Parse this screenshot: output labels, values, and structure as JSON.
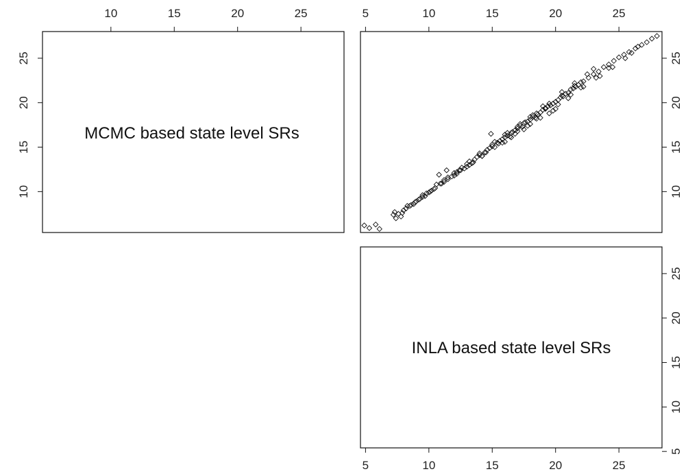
{
  "chart_data": {
    "type": "scatter",
    "variables": [
      "MCMC based state level SRs",
      "INLA based state level SRs"
    ],
    "tick_labels": {
      "top_left_panel": [
        "10",
        "15",
        "20",
        "25"
      ],
      "top_right_panel": [
        "5",
        "10",
        "15",
        "20",
        "25"
      ],
      "right_upper_panel": [
        "10",
        "15",
        "20",
        "25"
      ],
      "left_upper_panel": [
        "10",
        "15",
        "20",
        "25"
      ],
      "right_lower_panel": [
        "5",
        "10",
        "15",
        "20",
        "25"
      ],
      "bottom_right_panel": [
        "5",
        "10",
        "15",
        "20",
        "25"
      ]
    },
    "xlim": [
      4.6,
      28.4
    ],
    "ylim": [
      5.4,
      28.0
    ],
    "colors": {
      "points": "#111111",
      "axes": "#111111",
      "background": "#ffffff"
    },
    "points": [
      [
        4.9,
        6.2
      ],
      [
        5.3,
        5.9
      ],
      [
        5.8,
        6.3
      ],
      [
        6.1,
        5.8
      ],
      [
        7.2,
        7.4
      ],
      [
        7.4,
        7.0
      ],
      [
        7.6,
        7.5
      ],
      [
        7.8,
        7.2
      ],
      [
        7.3,
        7.7
      ],
      [
        8.0,
        7.9
      ],
      [
        8.3,
        8.4
      ],
      [
        8.6,
        8.5
      ],
      [
        8.9,
        8.8
      ],
      [
        9.2,
        9.1
      ],
      [
        9.5,
        9.4
      ],
      [
        9.8,
        9.8
      ],
      [
        10.1,
        10.0
      ],
      [
        10.4,
        10.3
      ],
      [
        10.6,
        10.8
      ],
      [
        10.8,
        11.9
      ],
      [
        10.9,
        10.9
      ],
      [
        11.2,
        11.1
      ],
      [
        11.4,
        12.4
      ],
      [
        11.5,
        11.6
      ],
      [
        11.8,
        11.7
      ],
      [
        12.0,
        12.1
      ],
      [
        12.2,
        12.0
      ],
      [
        12.4,
        12.4
      ],
      [
        12.6,
        12.7
      ],
      [
        12.8,
        12.6
      ],
      [
        13.0,
        13.1
      ],
      [
        13.2,
        13.4
      ],
      [
        13.4,
        13.2
      ],
      [
        13.6,
        13.6
      ],
      [
        13.8,
        13.9
      ],
      [
        14.0,
        14.1
      ],
      [
        14.2,
        14.0
      ],
      [
        14.4,
        14.4
      ],
      [
        14.6,
        14.7
      ],
      [
        14.8,
        14.9
      ],
      [
        14.9,
        16.5
      ],
      [
        15.0,
        15.1
      ],
      [
        15.2,
        15.0
      ],
      [
        15.4,
        15.5
      ],
      [
        15.6,
        15.7
      ],
      [
        15.8,
        15.9
      ],
      [
        16.0,
        16.1
      ],
      [
        16.2,
        16.3
      ],
      [
        16.4,
        16.2
      ],
      [
        16.6,
        16.7
      ],
      [
        16.8,
        16.9
      ],
      [
        17.0,
        17.1
      ],
      [
        17.2,
        17.4
      ],
      [
        17.4,
        17.3
      ],
      [
        17.6,
        17.8
      ],
      [
        17.8,
        17.9
      ],
      [
        18.0,
        18.1
      ],
      [
        18.2,
        18.4
      ],
      [
        18.4,
        18.3
      ],
      [
        18.6,
        18.7
      ],
      [
        18.8,
        18.9
      ],
      [
        19.0,
        19.2
      ],
      [
        19.2,
        19.3
      ],
      [
        19.4,
        19.6
      ],
      [
        19.6,
        19.7
      ],
      [
        19.8,
        19.9
      ],
      [
        20.0,
        20.1
      ],
      [
        20.2,
        20.3
      ],
      [
        20.4,
        20.6
      ],
      [
        20.6,
        20.7
      ],
      [
        20.8,
        21.0
      ],
      [
        21.0,
        21.1
      ],
      [
        21.2,
        21.5
      ],
      [
        21.4,
        21.6
      ],
      [
        21.6,
        21.8
      ],
      [
        21.8,
        22.0
      ],
      [
        22.2,
        22.4
      ],
      [
        22.6,
        22.8
      ],
      [
        23.0,
        23.2
      ],
      [
        23.4,
        23.5
      ],
      [
        23.8,
        24.0
      ],
      [
        24.2,
        24.3
      ],
      [
        24.6,
        24.7
      ],
      [
        25.0,
        25.1
      ],
      [
        25.4,
        25.4
      ],
      [
        25.8,
        25.7
      ],
      [
        26.3,
        26.1
      ],
      [
        26.8,
        26.5
      ],
      [
        27.2,
        26.8
      ],
      [
        27.6,
        27.2
      ],
      [
        28.0,
        27.5
      ],
      [
        16.0,
        15.6
      ],
      [
        16.5,
        16.1
      ],
      [
        17.0,
        16.8
      ],
      [
        17.5,
        17.0
      ],
      [
        18.0,
        17.6
      ],
      [
        18.5,
        18.2
      ],
      [
        19.5,
        18.8
      ],
      [
        20.0,
        19.3
      ],
      [
        21.0,
        20.5
      ],
      [
        22.0,
        21.7
      ],
      [
        23.5,
        23.0
      ],
      [
        24.5,
        24.0
      ],
      [
        25.5,
        25.0
      ],
      [
        26.0,
        25.6
      ],
      [
        26.5,
        26.3
      ],
      [
        19.0,
        19.6
      ],
      [
        20.5,
        21.2
      ],
      [
        21.5,
        22.2
      ],
      [
        22.5,
        23.2
      ],
      [
        23.0,
        23.8
      ],
      [
        13.5,
        13.3
      ],
      [
        14.5,
        14.4
      ],
      [
        15.5,
        15.4
      ],
      [
        16.5,
        16.6
      ],
      [
        17.5,
        17.7
      ],
      [
        12.5,
        12.4
      ],
      [
        11.5,
        11.4
      ],
      [
        10.5,
        10.4
      ],
      [
        9.5,
        9.6
      ],
      [
        8.5,
        8.4
      ],
      [
        14.0,
        14.3
      ],
      [
        15.0,
        15.3
      ],
      [
        16.0,
        16.4
      ],
      [
        17.0,
        17.3
      ],
      [
        18.0,
        18.4
      ],
      [
        13.0,
        12.8
      ],
      [
        12.0,
        11.8
      ],
      [
        11.0,
        10.9
      ],
      [
        10.0,
        9.9
      ],
      [
        9.0,
        8.9
      ],
      [
        18.5,
        18.8
      ],
      [
        19.5,
        19.9
      ],
      [
        20.5,
        20.8
      ],
      [
        21.5,
        21.9
      ],
      [
        22.0,
        22.3
      ],
      [
        15.2,
        15.6
      ],
      [
        16.2,
        16.6
      ],
      [
        17.2,
        17.6
      ],
      [
        18.2,
        18.6
      ],
      [
        19.2,
        19.4
      ],
      [
        14.2,
        14.0
      ],
      [
        13.2,
        13.0
      ],
      [
        12.2,
        12.2
      ],
      [
        11.2,
        11.3
      ],
      [
        10.2,
        10.1
      ],
      [
        20.2,
        19.8
      ],
      [
        21.2,
        20.9
      ],
      [
        22.2,
        21.8
      ],
      [
        23.2,
        22.8
      ],
      [
        24.2,
        23.9
      ],
      [
        15.8,
        15.5
      ],
      [
        16.8,
        16.5
      ],
      [
        17.8,
        17.4
      ],
      [
        18.8,
        18.3
      ],
      [
        19.8,
        19.1
      ],
      [
        8.2,
        8.1
      ],
      [
        8.8,
        8.6
      ],
      [
        9.3,
        9.2
      ],
      [
        9.7,
        9.5
      ],
      [
        7.9,
        7.6
      ]
    ]
  }
}
